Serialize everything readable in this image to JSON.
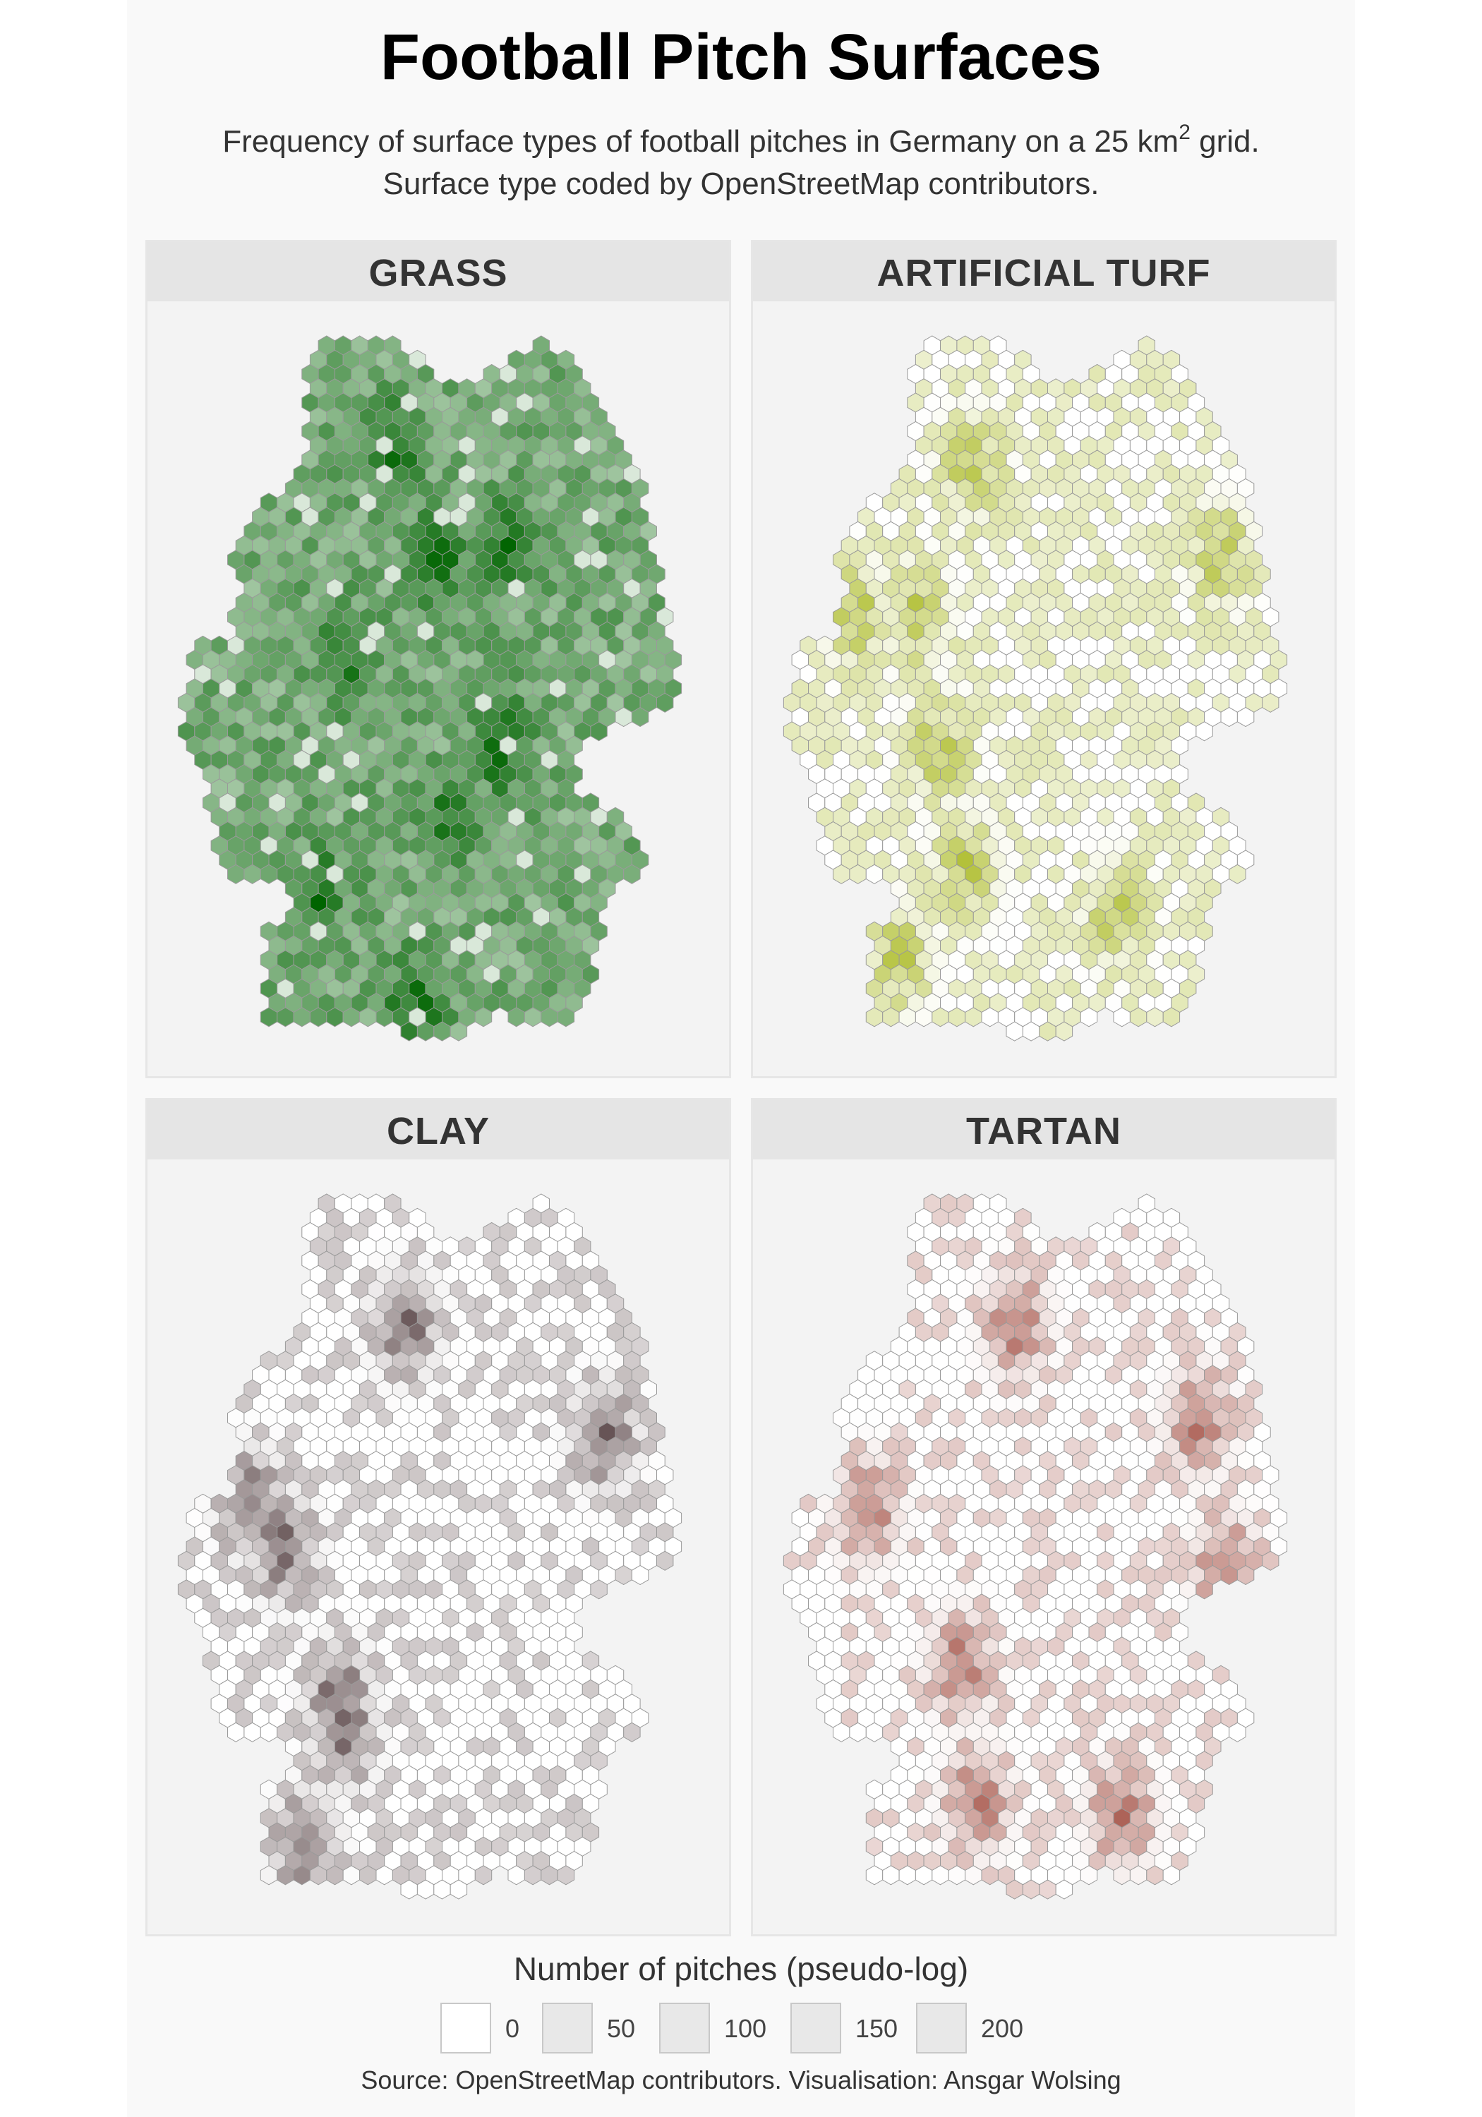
{
  "chart_data": {
    "type": "heatmap",
    "title": "Football Pitch Surfaces",
    "subtitle_line1_pre": "Frequency of surface types of football pitches in Germany on a 25 km",
    "subtitle_line1_sup": "2",
    "subtitle_line1_post": " grid.",
    "subtitle_line2": "Surface type coded by OpenStreetMap contributors.",
    "grid": "hexagonal",
    "scale": "pseudo-log",
    "panels": [
      {
        "label": "GRASS",
        "color_light": "#ffffff",
        "color_dark": "#006400",
        "density": "high",
        "hotspots": [
          [
            0.42,
            0.18
          ],
          [
            0.5,
            0.32
          ],
          [
            0.63,
            0.3
          ],
          [
            0.34,
            0.46
          ],
          [
            0.62,
            0.58
          ],
          [
            0.52,
            0.68
          ],
          [
            0.46,
            0.92
          ],
          [
            0.28,
            0.78
          ]
        ]
      },
      {
        "label": "ARTIFICIAL TURF",
        "color_light": "#ffffff",
        "color_dark": "#a8b81e",
        "density": "medium",
        "hotspots": [
          [
            0.37,
            0.2
          ],
          [
            0.82,
            0.32
          ],
          [
            0.16,
            0.4
          ],
          [
            0.27,
            0.4
          ],
          [
            0.31,
            0.58
          ],
          [
            0.36,
            0.74
          ],
          [
            0.63,
            0.8
          ],
          [
            0.24,
            0.86
          ]
        ]
      },
      {
        "label": "CLAY",
        "color_light": "#ffffff",
        "color_dark": "#5e4a4c",
        "density": "low",
        "hotspots": [
          [
            0.16,
            0.44
          ],
          [
            0.22,
            0.5
          ],
          [
            0.44,
            0.2
          ],
          [
            0.8,
            0.35
          ],
          [
            0.32,
            0.7
          ],
          [
            0.33,
            0.75
          ],
          [
            0.26,
            0.9
          ]
        ]
      },
      {
        "label": "TARTAN",
        "color_light": "#ffffff",
        "color_dark": "#a8594e",
        "density": "low",
        "hotspots": [
          [
            0.45,
            0.2
          ],
          [
            0.78,
            0.33
          ],
          [
            0.18,
            0.45
          ],
          [
            0.35,
            0.66
          ],
          [
            0.38,
            0.84
          ],
          [
            0.64,
            0.86
          ],
          [
            0.83,
            0.53
          ]
        ]
      }
    ],
    "legend": {
      "title": "Number of pitches (pseudo-log)",
      "breaks": [
        "0",
        "50",
        "100",
        "150",
        "200"
      ]
    },
    "caption": "Source: OpenStreetMap contributors. Visualisation: Ansgar Wolsing"
  }
}
